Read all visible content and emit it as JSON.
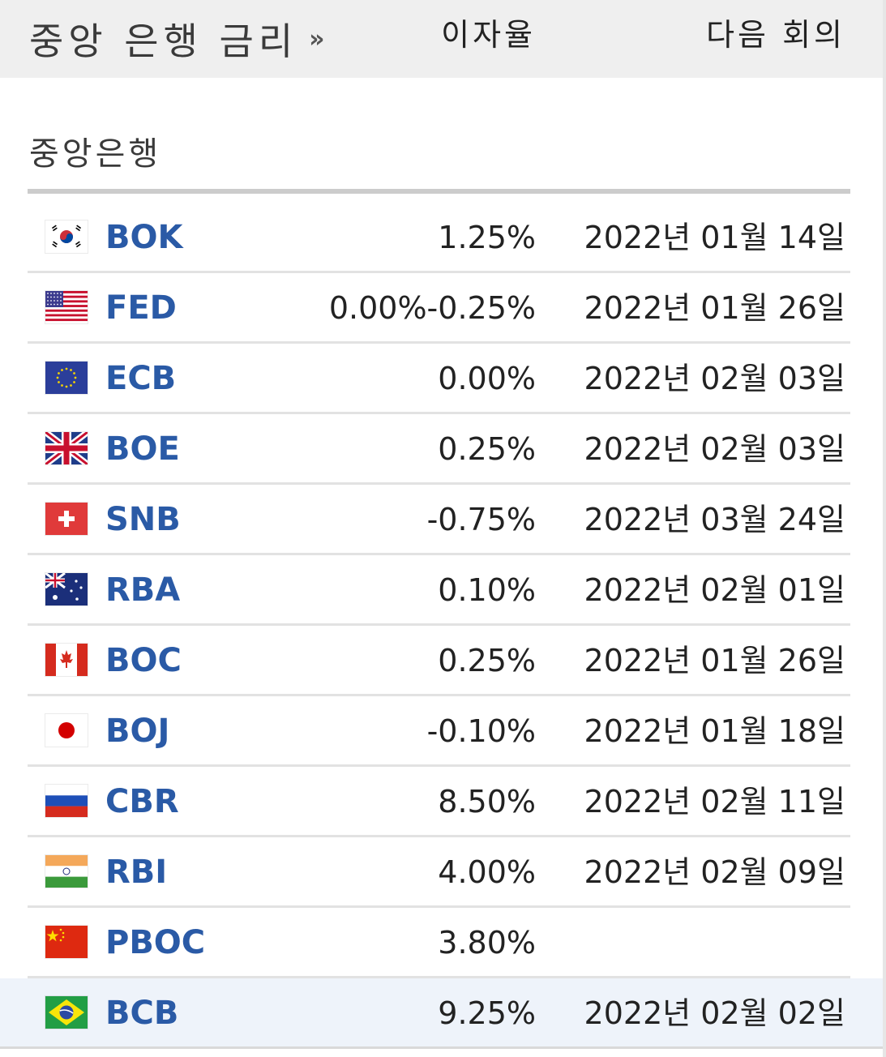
{
  "header": {
    "title": "중앙 은행 금리",
    "arrow": "»"
  },
  "columns": {
    "bank": "중앙은행",
    "rate": "이자율",
    "next_meeting": "다음 회의"
  },
  "rows": [
    {
      "flag": "south-korea-flag-icon",
      "bank": "BOK",
      "rate": "1.25%",
      "next": "2022년 01월 14일"
    },
    {
      "flag": "usa-flag-icon",
      "bank": "FED",
      "rate": "0.00%-0.25%",
      "next": "2022년 01월 26일"
    },
    {
      "flag": "eu-flag-icon",
      "bank": "ECB",
      "rate": "0.00%",
      "next": "2022년 02월 03일"
    },
    {
      "flag": "uk-flag-icon",
      "bank": "BOE",
      "rate": "0.25%",
      "next": "2022년 02월 03일"
    },
    {
      "flag": "switzerland-flag-icon",
      "bank": "SNB",
      "rate": "-0.75%",
      "next": "2022년 03월 24일"
    },
    {
      "flag": "australia-flag-icon",
      "bank": "RBA",
      "rate": "0.10%",
      "next": "2022년 02월 01일"
    },
    {
      "flag": "canada-flag-icon",
      "bank": "BOC",
      "rate": "0.25%",
      "next": "2022년 01월 26일"
    },
    {
      "flag": "japan-flag-icon",
      "bank": "BOJ",
      "rate": "-0.10%",
      "next": "2022년 01월 18일"
    },
    {
      "flag": "russia-flag-icon",
      "bank": "CBR",
      "rate": "8.50%",
      "next": "2022년 02월 11일"
    },
    {
      "flag": "india-flag-icon",
      "bank": "RBI",
      "rate": "4.00%",
      "next": "2022년 02월 09일"
    },
    {
      "flag": "china-flag-icon",
      "bank": "PBOC",
      "rate": "3.80%",
      "next": ""
    },
    {
      "flag": "brazil-flag-icon",
      "bank": "BCB",
      "rate": "9.25%",
      "next": "2022년 02월 02일",
      "highlighted": true
    }
  ],
  "colors": {
    "link": "#2a5aa6",
    "header_bg": "#efefef",
    "highlight_bg": "#eef3fa"
  }
}
